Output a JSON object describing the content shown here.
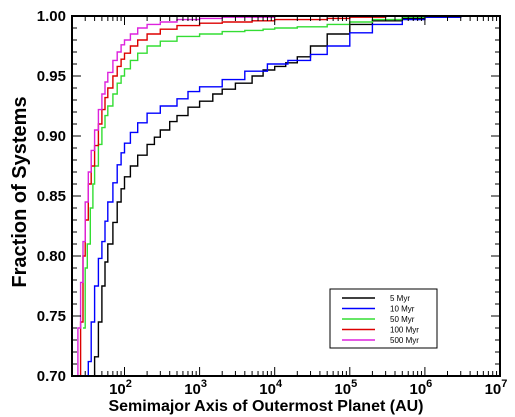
{
  "chart_data": {
    "type": "line",
    "title": "",
    "xlabel": "Semimajor Axis of Outermost Planet (AU)",
    "ylabel": "Fraction of Systems",
    "xscale": "log",
    "xlim": [
      20,
      10000000
    ],
    "ylim": [
      0.7,
      1.0
    ],
    "x_ticks": [
      {
        "value": 100,
        "base": "10",
        "exp": "2"
      },
      {
        "value": 1000,
        "base": "10",
        "exp": "3"
      },
      {
        "value": 10000,
        "base": "10",
        "exp": "4"
      },
      {
        "value": 100000,
        "base": "10",
        "exp": "5"
      },
      {
        "value": 1000000,
        "base": "10",
        "exp": "6"
      },
      {
        "value": 10000000,
        "base": "10",
        "exp": "7"
      }
    ],
    "y_ticks": [
      {
        "value": 0.7,
        "label": "0.70"
      },
      {
        "value": 0.75,
        "label": "0.75"
      },
      {
        "value": 0.8,
        "label": "0.80"
      },
      {
        "value": 0.85,
        "label": "0.85"
      },
      {
        "value": 0.9,
        "label": "0.90"
      },
      {
        "value": 0.95,
        "label": "0.95"
      },
      {
        "value": 1.0,
        "label": "1.00"
      }
    ],
    "grid": false,
    "legend_position": "bottom-right",
    "series": [
      {
        "name": "5 Myr",
        "color": "#000000",
        "x": [
          38,
          40,
          45,
          50,
          55,
          60,
          70,
          80,
          90,
          100,
          120,
          150,
          200,
          250,
          300,
          400,
          500,
          700,
          1000,
          1500,
          2000,
          3000,
          5000,
          7000,
          10000,
          14000,
          20000,
          30000,
          50000,
          100000,
          200000,
          500000,
          1000000,
          3000000,
          10000000
        ],
        "y": [
          0.7,
          0.716,
          0.745,
          0.775,
          0.795,
          0.81,
          0.828,
          0.845,
          0.856,
          0.866,
          0.875,
          0.884,
          0.893,
          0.899,
          0.905,
          0.912,
          0.917,
          0.924,
          0.929,
          0.935,
          0.939,
          0.944,
          0.95,
          0.955,
          0.958,
          0.961,
          0.966,
          0.975,
          0.985,
          0.993,
          0.996,
          0.998,
          0.999,
          1.0,
          1.0
        ]
      },
      {
        "name": "10 Myr",
        "color": "#0000ff",
        "x": [
          30,
          33,
          36,
          40,
          45,
          50,
          55,
          60,
          70,
          80,
          90,
          100,
          120,
          150,
          200,
          300,
          500,
          700,
          1000,
          2000,
          4000,
          8000,
          15000,
          30000,
          50000,
          100000,
          200000,
          500000,
          1000000,
          3000000,
          10000000
        ],
        "y": [
          0.7,
          0.712,
          0.745,
          0.775,
          0.798,
          0.812,
          0.829,
          0.845,
          0.861,
          0.876,
          0.886,
          0.894,
          0.903,
          0.911,
          0.919,
          0.925,
          0.931,
          0.937,
          0.941,
          0.947,
          0.954,
          0.96,
          0.963,
          0.968,
          0.975,
          0.986,
          0.993,
          0.997,
          0.999,
          1.0,
          1.0
        ]
      },
      {
        "name": "50 Myr",
        "color": "#33dd33",
        "x": [
          28,
          30,
          32,
          35,
          38,
          40,
          45,
          50,
          55,
          60,
          70,
          80,
          90,
          100,
          120,
          150,
          200,
          300,
          500,
          1000,
          2000,
          4000,
          7000,
          10000,
          20000,
          50000,
          100000,
          200000,
          500000,
          1000000,
          10000000
        ],
        "y": [
          0.74,
          0.79,
          0.81,
          0.84,
          0.86,
          0.875,
          0.893,
          0.907,
          0.917,
          0.925,
          0.935,
          0.944,
          0.95,
          0.956,
          0.963,
          0.969,
          0.975,
          0.979,
          0.983,
          0.985,
          0.987,
          0.988,
          0.989,
          0.99,
          0.991,
          0.993,
          0.995,
          0.997,
          0.999,
          1.0,
          1.0
        ]
      },
      {
        "name": "100 Myr",
        "color": "#dd0000",
        "x": [
          24,
          26,
          28,
          30,
          33,
          36,
          40,
          45,
          50,
          55,
          60,
          70,
          80,
          90,
          100,
          120,
          150,
          200,
          300,
          500,
          1000,
          2000,
          5000,
          10000,
          50000,
          100000,
          300000,
          1000000,
          10000000
        ],
        "y": [
          0.7,
          0.745,
          0.8,
          0.83,
          0.86,
          0.875,
          0.892,
          0.91,
          0.922,
          0.932,
          0.94,
          0.95,
          0.958,
          0.964,
          0.969,
          0.975,
          0.98,
          0.985,
          0.989,
          0.992,
          0.994,
          0.995,
          0.996,
          0.997,
          0.998,
          0.999,
          1.0,
          1.0,
          1.0
        ]
      },
      {
        "name": "500 Myr",
        "color": "#dd22dd",
        "x": [
          22,
          24,
          26,
          28,
          30,
          33,
          36,
          40,
          45,
          50,
          55,
          60,
          70,
          80,
          90,
          100,
          120,
          150,
          200,
          300,
          500,
          1000,
          2000,
          5000,
          10000,
          50000,
          100000,
          1000000,
          10000000
        ],
        "y": [
          0.7,
          0.74,
          0.778,
          0.812,
          0.845,
          0.87,
          0.888,
          0.905,
          0.922,
          0.935,
          0.945,
          0.953,
          0.963,
          0.97,
          0.976,
          0.98,
          0.985,
          0.99,
          0.993,
          0.995,
          0.997,
          0.998,
          0.999,
          0.999,
          1.0,
          1.0,
          1.0,
          1.0,
          1.0
        ]
      }
    ]
  }
}
